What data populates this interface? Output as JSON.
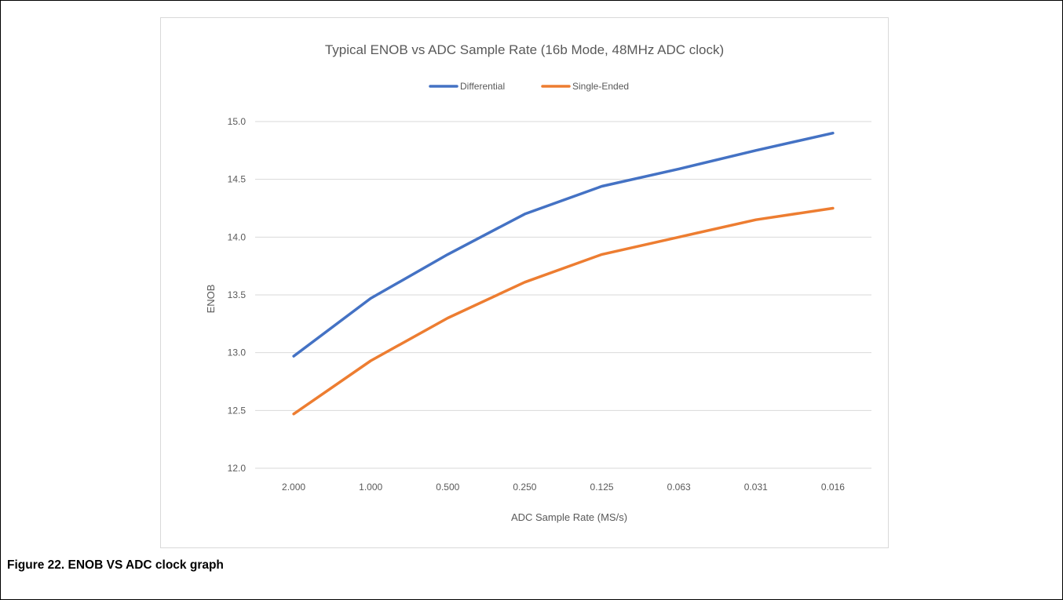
{
  "caption": "Figure 22.  ENOB VS ADC clock graph",
  "chart_data": {
    "type": "line",
    "title": "Typical ENOB vs ADC Sample Rate (16b Mode, 48MHz ADC clock)",
    "xlabel": "ADC Sample Rate (MS/s)",
    "ylabel": "ENOB",
    "categories": [
      "2.000",
      "1.000",
      "0.500",
      "0.250",
      "0.125",
      "0.063",
      "0.031",
      "0.016"
    ],
    "series": [
      {
        "name": "Differential",
        "color": "#4472c4",
        "values": [
          12.97,
          13.47,
          13.85,
          14.2,
          14.44,
          14.59,
          14.75,
          14.9
        ]
      },
      {
        "name": "Single-Ended",
        "color": "#ed7d31",
        "values": [
          12.47,
          12.93,
          13.3,
          13.61,
          13.85,
          14.0,
          14.15,
          14.25
        ]
      }
    ],
    "ylim": [
      12.0,
      15.0
    ],
    "yticks": [
      "12.0",
      "12.5",
      "13.0",
      "13.5",
      "14.0",
      "14.5",
      "15.0"
    ],
    "grid": true,
    "legend": "top"
  }
}
